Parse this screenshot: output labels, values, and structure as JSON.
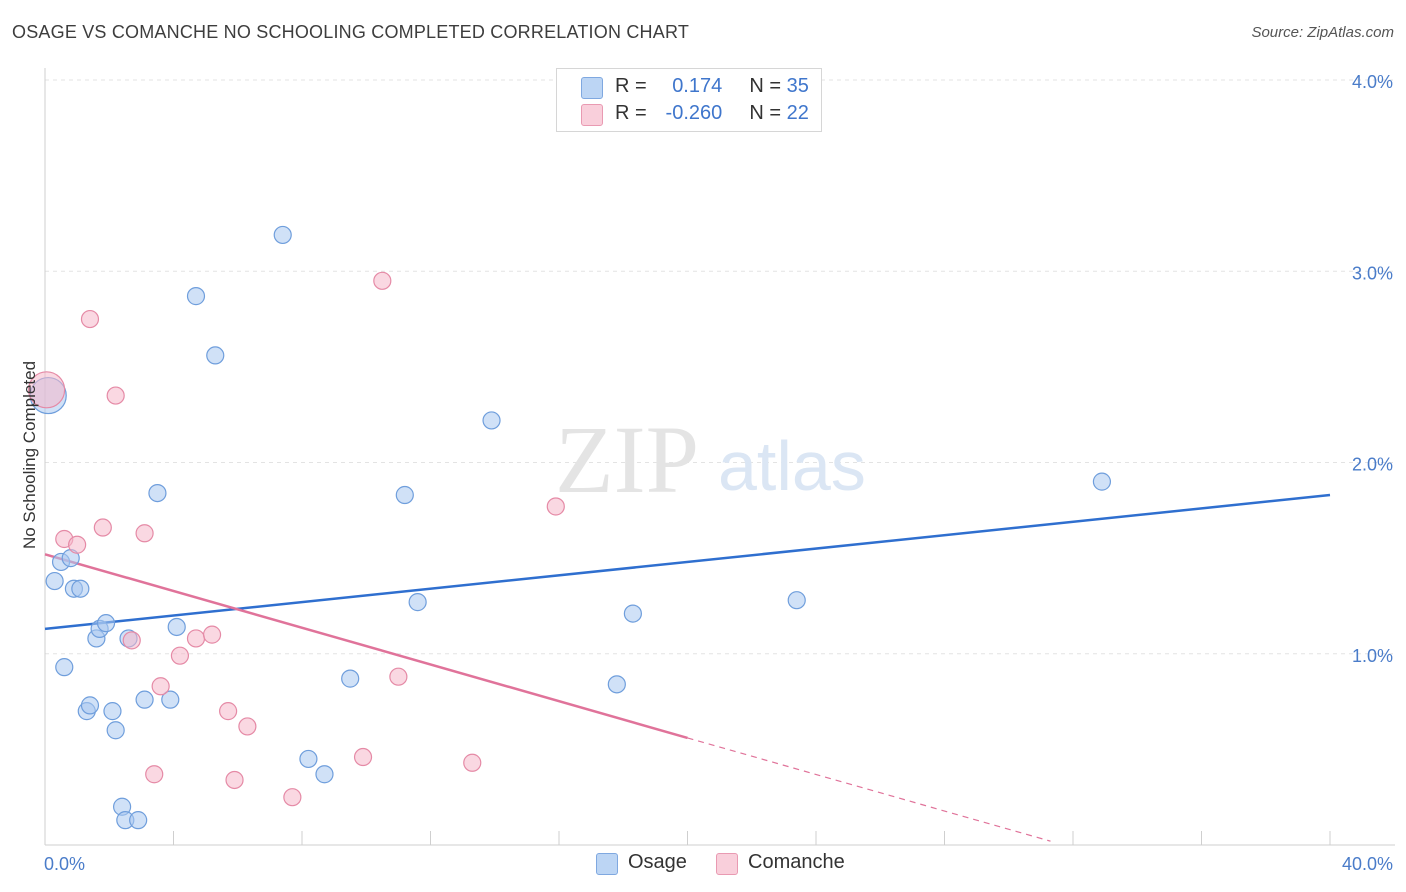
{
  "header": {
    "title": "OSAGE VS COMANCHE NO SCHOOLING COMPLETED CORRELATION CHART",
    "source": "Source: ZipAtlas.com"
  },
  "watermark": {
    "zip": "ZIP",
    "atlas": "atlas"
  },
  "legend": {
    "rows": [
      {
        "r_label": "R =",
        "r_value": "0.174",
        "n_label": "N =",
        "n_value": "35",
        "color": "#a9c9f0"
      },
      {
        "r_label": "R =",
        "r_value": "-0.260",
        "n_label": "N =",
        "n_value": "22",
        "color": "#f5b8ca"
      }
    ]
  },
  "bottom_legend": {
    "osage": "Osage",
    "comanche": "Comanche"
  },
  "chart_data": {
    "type": "scatter",
    "title": "OSAGE VS COMANCHE NO SCHOOLING COMPLETED CORRELATION CHART",
    "xlabel": "",
    "ylabel": "No Schooling Completed",
    "xlim": [
      0,
      40
    ],
    "ylim": [
      0,
      4
    ],
    "x_tick_labels": [
      "0.0%",
      "40.0%"
    ],
    "y_tick_labels": [
      "1.0%",
      "2.0%",
      "3.0%",
      "4.0%"
    ],
    "y_ticks": [
      1.0,
      2.0,
      3.0,
      4.0
    ],
    "grid": true,
    "legend_position": "top-center",
    "series": [
      {
        "name": "Osage",
        "color": "#a9c9f0",
        "stroke": "#6f9edc",
        "trend": {
          "x": [
            0,
            40
          ],
          "y": [
            1.13,
            1.83
          ],
          "color": "#2f6fcf"
        },
        "points": [
          [
            0.1,
            2.35
          ],
          [
            0.3,
            1.38
          ],
          [
            0.5,
            1.48
          ],
          [
            0.6,
            0.93
          ],
          [
            0.8,
            1.5
          ],
          [
            0.9,
            1.34
          ],
          [
            1.1,
            1.34
          ],
          [
            1.3,
            0.7
          ],
          [
            1.4,
            0.73
          ],
          [
            1.6,
            1.08
          ],
          [
            1.7,
            1.13
          ],
          [
            1.9,
            1.16
          ],
          [
            2.1,
            0.7
          ],
          [
            2.2,
            0.6
          ],
          [
            2.4,
            0.2
          ],
          [
            2.5,
            0.13
          ],
          [
            2.6,
            1.08
          ],
          [
            2.9,
            0.13
          ],
          [
            3.1,
            0.76
          ],
          [
            3.5,
            1.84
          ],
          [
            3.9,
            0.76
          ],
          [
            4.1,
            1.14
          ],
          [
            4.7,
            2.87
          ],
          [
            5.3,
            2.56
          ],
          [
            7.4,
            3.19
          ],
          [
            8.2,
            0.45
          ],
          [
            8.7,
            0.37
          ],
          [
            9.5,
            0.87
          ],
          [
            11.2,
            1.83
          ],
          [
            11.6,
            1.27
          ],
          [
            13.9,
            2.22
          ],
          [
            17.8,
            0.84
          ],
          [
            18.3,
            1.21
          ],
          [
            23.4,
            1.28
          ],
          [
            32.9,
            1.9
          ]
        ]
      },
      {
        "name": "Comanche",
        "color": "#f5b8ca",
        "stroke": "#e58aa6",
        "trend": {
          "x": [
            0,
            20
          ],
          "y": [
            1.52,
            0.56
          ],
          "dash_to": [
            31.3,
            0.02
          ],
          "color": "#e0739a"
        },
        "points": [
          [
            0.05,
            2.38
          ],
          [
            0.6,
            1.6
          ],
          [
            1.0,
            1.57
          ],
          [
            1.4,
            2.75
          ],
          [
            1.8,
            1.66
          ],
          [
            2.2,
            2.35
          ],
          [
            2.7,
            1.07
          ],
          [
            3.1,
            1.63
          ],
          [
            3.4,
            0.37
          ],
          [
            3.6,
            0.83
          ],
          [
            4.2,
            0.99
          ],
          [
            4.7,
            1.08
          ],
          [
            5.2,
            1.1
          ],
          [
            5.7,
            0.7
          ],
          [
            5.9,
            0.34
          ],
          [
            6.3,
            0.62
          ],
          [
            7.7,
            0.25
          ],
          [
            9.9,
            0.46
          ],
          [
            10.5,
            2.95
          ],
          [
            11.0,
            0.88
          ],
          [
            13.3,
            0.43
          ],
          [
            15.9,
            1.77
          ]
        ]
      }
    ]
  }
}
